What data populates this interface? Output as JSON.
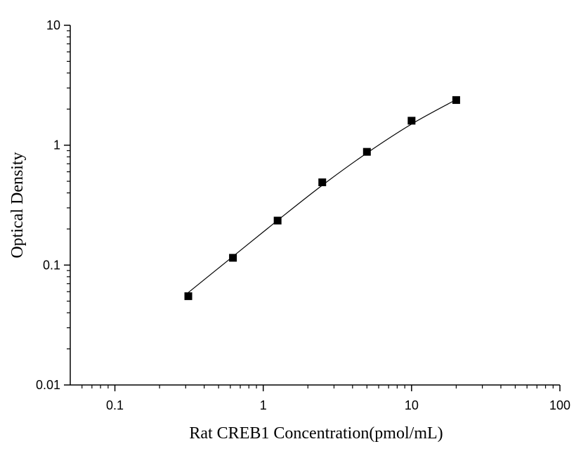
{
  "chart_data": {
    "type": "scatter",
    "title": "",
    "xlabel": "Rat CREB1 Concentration(pmol/mL)",
    "ylabel": "Optical Density",
    "xscale": "log",
    "yscale": "log",
    "xlim": [
      0.05,
      100
    ],
    "ylim": [
      0.01,
      10
    ],
    "x_ticks": [
      0.1,
      1,
      10,
      100
    ],
    "x_tick_labels": [
      "0.1",
      "1",
      "10",
      "100"
    ],
    "y_ticks": [
      0.01,
      0.1,
      1,
      10
    ],
    "y_tick_labels": [
      "0.01",
      "0.1",
      "1",
      "10"
    ],
    "grid": false,
    "series": [
      {
        "x": [
          0.3125,
          0.625,
          1.25,
          2.5,
          5,
          10,
          20
        ],
        "y": [
          0.055,
          0.115,
          0.235,
          0.49,
          0.88,
          1.6,
          2.38
        ],
        "marker": "square",
        "color": "#000000"
      }
    ],
    "fit_curve": {
      "x": [
        0.3125,
        0.625,
        1.25,
        2.5,
        5,
        10,
        20
      ],
      "y": [
        0.059,
        0.118,
        0.236,
        0.463,
        0.86,
        1.5,
        2.4
      ],
      "color": "#000000"
    }
  }
}
